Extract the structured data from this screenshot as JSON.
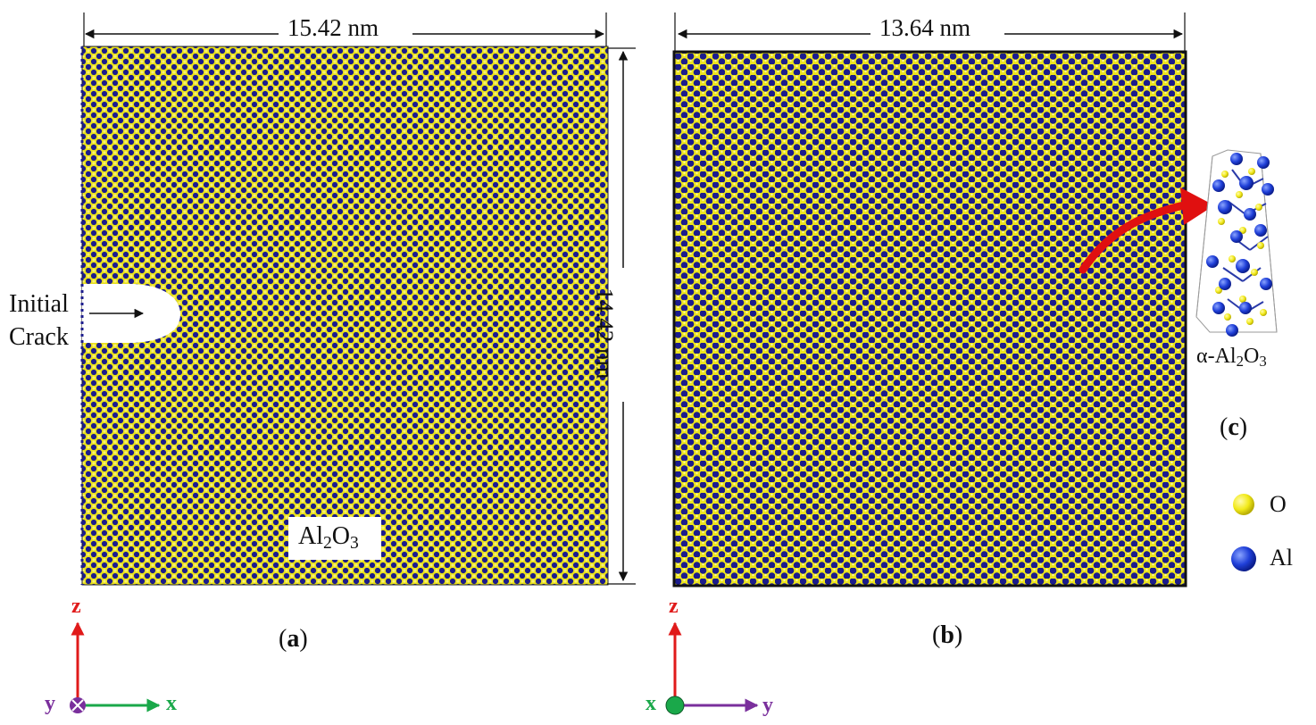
{
  "panel_a": {
    "width_label": "15.42 nm",
    "height_label": "14.42 nm",
    "crack_label_line1": "Initial",
    "crack_label_line2": "Crack",
    "material_base": "Al",
    "material_sub1": "2",
    "material_mid": "O",
    "material_sub2": "3",
    "caption_open": "(",
    "caption_letter": "a",
    "caption_close": ")",
    "axes": {
      "up": "z",
      "right": "x",
      "out": "y"
    }
  },
  "panel_b": {
    "width_label": "13.64 nm",
    "caption_open": "(",
    "caption_letter": "b",
    "caption_close": ")",
    "axes": {
      "up": "z",
      "right": "y",
      "out": "x"
    }
  },
  "panel_c": {
    "unit_cell_prefix": "α-Al",
    "unit_cell_sub1": "2",
    "unit_cell_mid": "O",
    "unit_cell_sub2": "3",
    "caption_open": "(",
    "caption_letter": "c",
    "caption_close": ")"
  },
  "legend": [
    {
      "label": "O",
      "color": "#f2ea1a"
    },
    {
      "label": "Al",
      "color": "#1f3fd8"
    }
  ],
  "colors": {
    "oxygen": "#e9e11c",
    "aluminum": "#1c1c8c",
    "axis_z": "#e01a1a",
    "axis_x_a": "#1aa84a",
    "axis_out_a": "#7a2f9c",
    "axis_out_b": "#1aa84a",
    "axis_y_b": "#7a2f9c",
    "arrow": "#e01010"
  }
}
